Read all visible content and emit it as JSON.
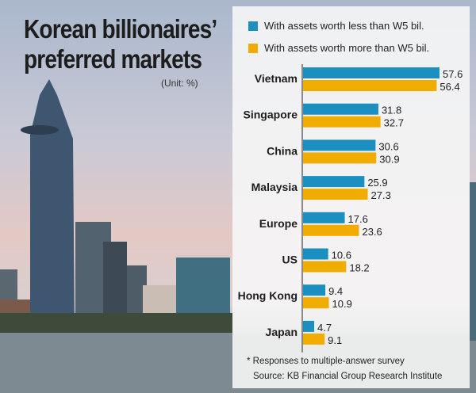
{
  "title_lines": [
    "Korean billionaires’",
    "preferred markets"
  ],
  "colors": {
    "less": "#1a8fc0",
    "more": "#f0ad00"
  },
  "chart_data": {
    "type": "bar",
    "orientation": "horizontal",
    "title": "Korean billionaires’ preferred markets",
    "unit": "(Unit: %)",
    "categories": [
      "Vietnam",
      "Singapore",
      "China",
      "Malaysia",
      "Europe",
      "US",
      "Hong Kong",
      "Japan"
    ],
    "series": [
      {
        "name": "With assets worth less than W5 bil.",
        "values": [
          57.6,
          31.8,
          30.6,
          25.9,
          17.6,
          10.6,
          9.4,
          4.7
        ]
      },
      {
        "name": "With assets worth more than W5 bil.",
        "values": [
          56.4,
          32.7,
          30.9,
          27.3,
          23.6,
          18.2,
          10.9,
          9.1
        ]
      }
    ],
    "xlim": [
      0,
      60
    ],
    "grid": false,
    "legend": "top"
  },
  "footnote": "* Responses to multiple-answer survey",
  "source": "Source: KB Financial Group Research Institute"
}
